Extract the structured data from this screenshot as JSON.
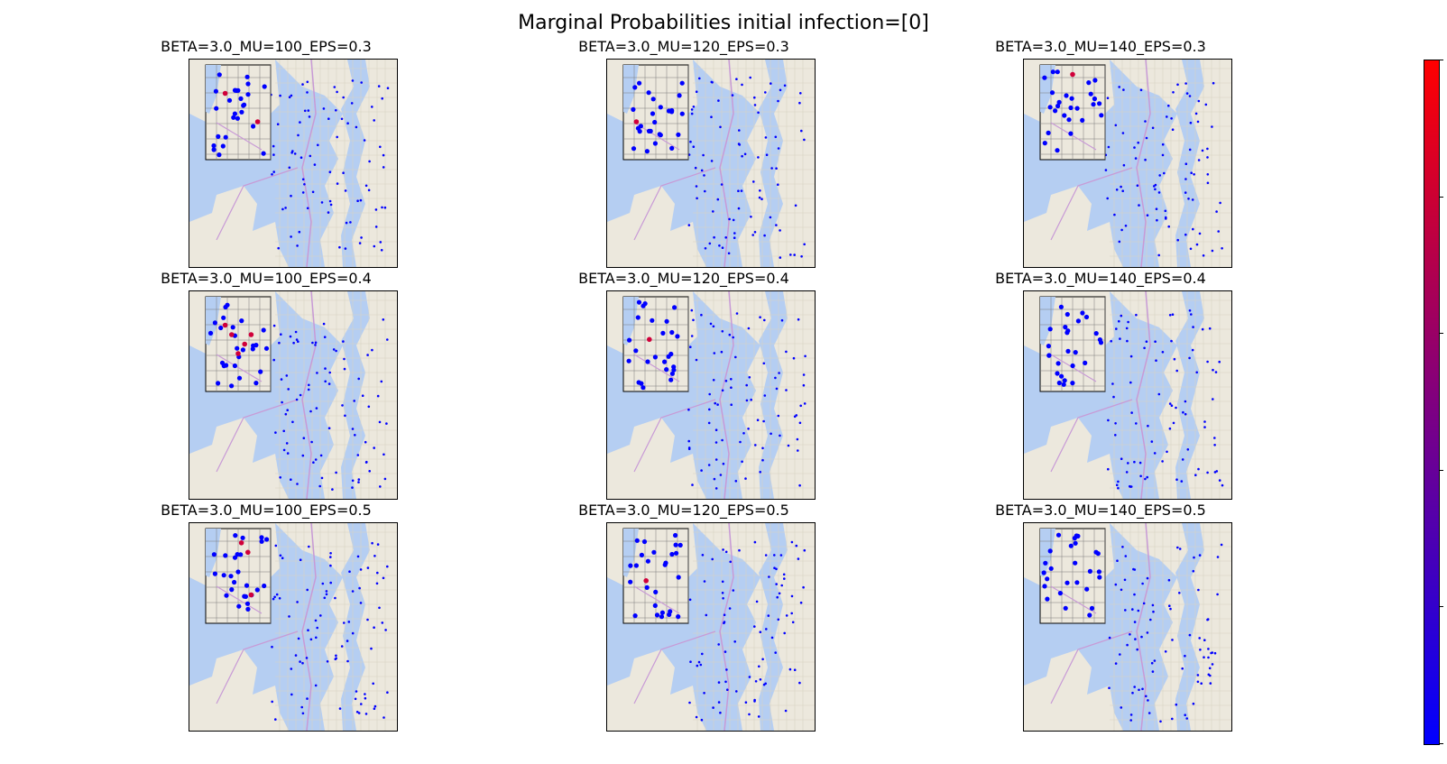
{
  "figure": {
    "title": "Marginal Probabilities initial infection=[0]"
  },
  "panels": [
    {
      "title": "BETA=3.0_MU=100_EPS=0.3",
      "red_markers": [
        [
          0.8,
          0.6
        ],
        [
          0.3,
          0.3
        ]
      ]
    },
    {
      "title": "BETA=3.0_MU=120_EPS=0.3",
      "red_markers": [
        [
          0.2,
          0.6
        ]
      ]
    },
    {
      "title": "BETA=3.0_MU=140_EPS=0.3",
      "red_markers": [
        [
          0.5,
          0.1
        ]
      ]
    },
    {
      "title": "BETA=3.0_MU=100_EPS=0.4",
      "red_markers": [
        [
          0.3,
          0.3
        ],
        [
          0.4,
          0.4
        ],
        [
          0.6,
          0.5
        ],
        [
          0.7,
          0.4
        ],
        [
          0.5,
          0.6
        ]
      ]
    },
    {
      "title": "BETA=3.0_MU=120_EPS=0.4",
      "red_markers": [
        [
          0.4,
          0.45
        ]
      ]
    },
    {
      "title": "BETA=3.0_MU=140_EPS=0.4",
      "red_markers": []
    },
    {
      "title": "BETA=3.0_MU=100_EPS=0.5",
      "red_markers": [
        [
          0.65,
          0.25
        ],
        [
          0.55,
          0.15
        ],
        [
          0.7,
          0.7
        ]
      ]
    },
    {
      "title": "BETA=3.0_MU=120_EPS=0.5",
      "red_markers": [
        [
          0.35,
          0.55
        ]
      ]
    },
    {
      "title": "BETA=3.0_MU=140_EPS=0.5",
      "red_markers": []
    }
  ],
  "colorbar": {
    "low_color": "#0000ff",
    "high_color": "#ff0000",
    "tick_count": 6
  }
}
